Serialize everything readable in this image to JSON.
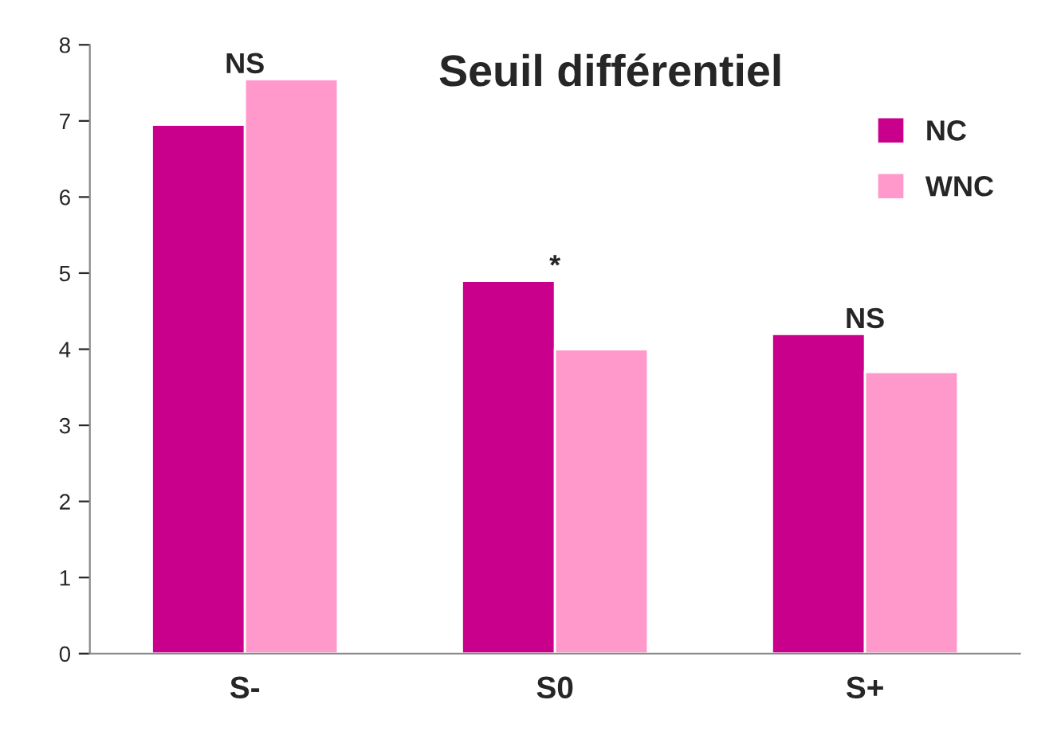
{
  "chart_data": {
    "type": "bar",
    "title": "Seuil différentiel",
    "categories": [
      "S-",
      "S0",
      "S+"
    ],
    "series": [
      {
        "name": "NC",
        "color": "#c8008c",
        "values": [
          6.95,
          4.9,
          4.2
        ]
      },
      {
        "name": "WNC",
        "color": "#ff99cc",
        "values": [
          7.55,
          4.0,
          3.7
        ]
      }
    ],
    "ylim": [
      0,
      8
    ],
    "yticks": [
      0,
      1,
      2,
      3,
      4,
      5,
      6,
      7,
      8
    ],
    "grid": false,
    "legend": "top right",
    "annotations": [
      "NS",
      "*",
      "NS"
    ]
  }
}
